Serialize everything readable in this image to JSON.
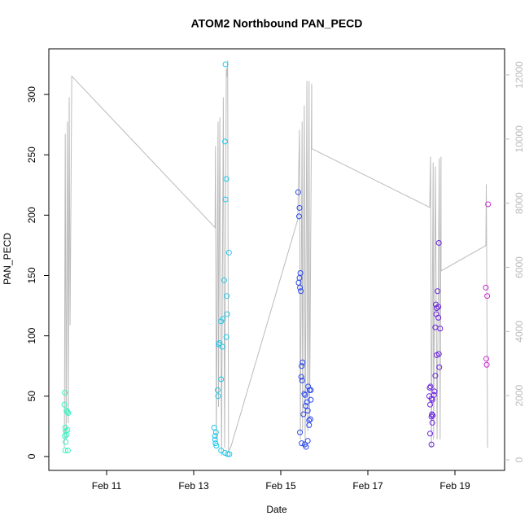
{
  "chart_data": {
    "type": "scatter",
    "title": "ATOM2 Northbound PAN_PECD",
    "x_label": "Date",
    "y_label": "PAN_PECD",
    "xlim": [
      9.673,
      20.14
    ],
    "xticks": [
      {
        "value": 11,
        "label": "Feb 11"
      },
      {
        "value": 13,
        "label": "Feb 13"
      },
      {
        "value": 15,
        "label": "Feb 15"
      },
      {
        "value": 17,
        "label": "Feb 17"
      },
      {
        "value": 19,
        "label": "Feb 19"
      }
    ],
    "ylim": [
      -11.5,
      337.8
    ],
    "yticks": [
      0,
      50,
      100,
      150,
      200,
      250,
      300
    ],
    "y2lim": [
      -330,
      12812
    ],
    "y2ticks": [
      0,
      2000,
      4000,
      6000,
      8000,
      10000,
      12000
    ],
    "series": [
      {
        "type": "scatter",
        "color": "#33f5c0",
        "x": [
          10.04,
          10.03,
          10.1,
          10.08,
          10.12,
          10.05,
          10.1,
          10.06,
          10.04,
          10.08,
          10.06,
          10.05,
          10.11
        ],
        "values": [
          53,
          43,
          37,
          38,
          36,
          24,
          22,
          21,
          17,
          18,
          12,
          5,
          5
        ]
      },
      {
        "type": "scatter",
        "color": "#22c8ea",
        "x": [
          13.47,
          13.51,
          13.49,
          13.49,
          13.5,
          13.52,
          13.63,
          13.72,
          13.78,
          13.82,
          13.55,
          13.56,
          13.63,
          13.66,
          13.57,
          13.59,
          13.63,
          13.67,
          13.77,
          13.75,
          13.76,
          13.7,
          13.81,
          13.73,
          13.75,
          13.72,
          13.73
        ],
        "values": [
          24,
          20,
          17,
          14,
          11,
          9,
          5,
          3,
          2,
          2,
          55,
          50,
          64,
          91,
          93,
          94,
          112,
          114,
          118,
          99,
          133,
          146,
          169,
          213,
          230,
          261,
          325
        ]
      },
      {
        "type": "scatter",
        "color": "#2a48ee",
        "x": [
          15.4,
          15.43,
          15.42,
          15.45,
          15.43,
          15.41,
          15.44,
          15.46,
          15.5,
          15.48,
          15.47,
          15.49,
          15.66,
          15.69,
          15.63,
          15.54,
          15.56,
          15.69,
          15.6,
          15.57,
          15.62,
          15.52,
          15.68,
          15.65,
          15.65,
          15.44,
          15.62,
          15.48,
          15.55,
          15.58
        ],
        "values": [
          219,
          206,
          199,
          152,
          148,
          144,
          140,
          137,
          78,
          75,
          66,
          63,
          55,
          55,
          58,
          52,
          51,
          47,
          45,
          42,
          38,
          35,
          31,
          30,
          26,
          20,
          13,
          11,
          10,
          8
        ]
      },
      {
        "type": "scatter",
        "color": "#6a22e0",
        "x": [
          18.63,
          18.6,
          18.56,
          18.62,
          18.58,
          18.57,
          18.62,
          18.55,
          18.66,
          18.63,
          18.58,
          18.64,
          18.55,
          18.44,
          18.42,
          18.53,
          18.52,
          18.41,
          18.46,
          18.48,
          18.43,
          18.47,
          18.49,
          18.46,
          18.48,
          18.43,
          18.46
        ],
        "values": [
          177,
          137,
          126,
          124,
          123,
          118,
          115,
          107,
          106,
          85,
          84,
          74,
          67,
          58,
          57,
          54,
          51,
          50,
          48,
          47,
          43,
          35,
          34,
          33,
          28,
          19,
          10
        ]
      },
      {
        "type": "scatter",
        "color": "#cc28d0",
        "x": [
          19.76,
          19.71,
          19.74,
          19.72,
          19.73
        ],
        "values": [
          209,
          140,
          133,
          81,
          76
        ]
      },
      {
        "type": "line",
        "axis": "y2",
        "color": "#bbbbbb",
        "x": [
          10.03,
          10.05,
          10.07,
          10.1,
          10.12,
          10.14,
          10.16,
          10.2,
          13.49,
          13.5,
          13.52,
          13.56,
          13.57,
          13.6,
          13.64,
          13.68,
          13.71,
          13.75,
          13.76,
          13.78,
          13.8,
          13.86,
          15.39,
          15.43,
          15.45,
          15.49,
          15.5,
          15.54,
          15.56,
          15.6,
          15.62,
          15.65,
          15.66,
          15.71,
          15.712,
          18.42,
          18.44,
          18.46,
          18.5,
          18.51,
          18.55,
          18.59,
          18.64,
          18.66,
          18.68,
          18.682,
          19.71,
          19.72,
          19.75
        ],
        "values": [
          380,
          10160,
          635,
          10540,
          1140,
          11300,
          4190,
          11960,
          7240,
          9780,
          635,
          10540,
          1650,
          10670,
          130,
          11300,
          380,
          12190,
          11940,
          12450,
          250,
          430,
          7490,
          10290,
          635,
          10540,
          890,
          11050,
          380,
          11810,
          890,
          11810,
          1140,
          11730,
          9700,
          7870,
          9450,
          380,
          9270,
          635,
          9140,
          635,
          9400,
          635,
          9450,
          5890,
          6680,
          8590,
          380
        ]
      }
    ]
  }
}
